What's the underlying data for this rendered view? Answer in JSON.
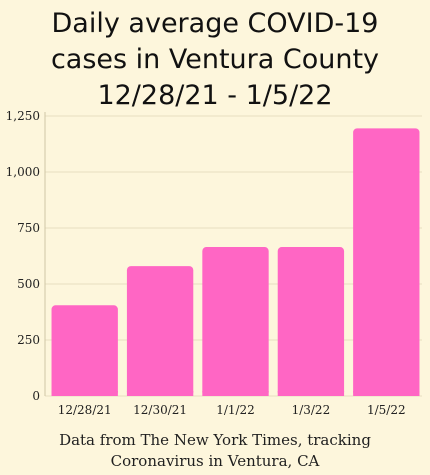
{
  "chart_data": {
    "type": "bar",
    "title_lines": [
      "Daily average COVID-19",
      "cases in Ventura County",
      "12/28/21 - 1/5/22"
    ],
    "categories": [
      "12/28/21",
      "12/30/21",
      "1/1/22",
      "1/3/22",
      "1/5/22"
    ],
    "values": [
      405,
      580,
      665,
      665,
      1195
    ],
    "ylim": [
      0,
      1250
    ],
    "yticks": [
      0,
      250,
      500,
      750,
      1000,
      1250
    ],
    "ytick_labels": [
      "0",
      "250",
      "500",
      "750",
      "1,000",
      "1,250"
    ],
    "grid": true,
    "bar_color": "#ff66c4",
    "grid_color": "#e8dfc0",
    "xlabel": "",
    "ylabel": ""
  },
  "caption_lines": [
    "Data from The New York Times, tracking",
    "Coronavirus in Ventura, CA"
  ]
}
